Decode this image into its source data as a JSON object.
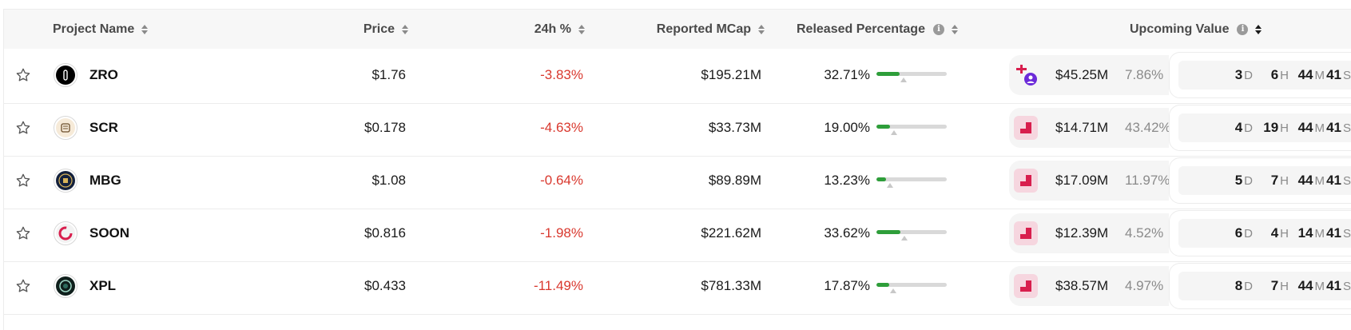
{
  "header": {
    "project_name": "Project Name",
    "price": "Price",
    "change_24h": "24h %",
    "reported_mcap": "Reported MCap",
    "released_percentage": "Released Percentage",
    "upcoming_value": "Upcoming Value",
    "info_glyph": "i"
  },
  "colors": {
    "negative": "#d9382e",
    "progress_fill": "#2e9e3a",
    "progress_track": "#d9d9d9",
    "unlock_icon_bg": "#f6d6df",
    "unlock_icon_fg": "#d81f4e"
  },
  "rows": [
    {
      "symbol": "ZRO",
      "price": "$1.76",
      "change_24h": "-3.83%",
      "reported_mcap": "$195.21M",
      "released_pct": "32.71%",
      "released_fraction": 0.3271,
      "upcoming_icon": "multi-unlock-icon",
      "upcoming_amount": "$45.25M",
      "upcoming_pct": "7.86%",
      "countdown": {
        "d": "3",
        "h": "6",
        "m": "44",
        "s": "41"
      },
      "logo": "zro-logo-icon"
    },
    {
      "symbol": "SCR",
      "price": "$0.178",
      "change_24h": "-4.63%",
      "reported_mcap": "$33.73M",
      "released_pct": "19.00%",
      "released_fraction": 0.19,
      "upcoming_icon": "cliff-unlock-icon",
      "upcoming_amount": "$14.71M",
      "upcoming_pct": "43.42%",
      "countdown": {
        "d": "4",
        "h": "19",
        "m": "44",
        "s": "41"
      },
      "logo": "scr-logo-icon"
    },
    {
      "symbol": "MBG",
      "price": "$1.08",
      "change_24h": "-0.64%",
      "reported_mcap": "$89.89M",
      "released_pct": "13.23%",
      "released_fraction": 0.1323,
      "upcoming_icon": "cliff-unlock-icon",
      "upcoming_amount": "$17.09M",
      "upcoming_pct": "11.97%",
      "countdown": {
        "d": "5",
        "h": "7",
        "m": "44",
        "s": "41"
      },
      "logo": "mbg-logo-icon"
    },
    {
      "symbol": "SOON",
      "price": "$0.816",
      "change_24h": "-1.98%",
      "reported_mcap": "$221.62M",
      "released_pct": "33.62%",
      "released_fraction": 0.3362,
      "upcoming_icon": "cliff-unlock-icon",
      "upcoming_amount": "$12.39M",
      "upcoming_pct": "4.52%",
      "countdown": {
        "d": "6",
        "h": "4",
        "m": "14",
        "s": "41"
      },
      "logo": "soon-logo-icon"
    },
    {
      "symbol": "XPL",
      "price": "$0.433",
      "change_24h": "-11.49%",
      "reported_mcap": "$781.33M",
      "released_pct": "17.87%",
      "released_fraction": 0.1787,
      "upcoming_icon": "cliff-unlock-icon",
      "upcoming_amount": "$38.57M",
      "upcoming_pct": "4.97%",
      "countdown": {
        "d": "8",
        "h": "7",
        "m": "44",
        "s": "41"
      },
      "logo": "xpl-logo-icon"
    }
  ],
  "countdown_units": {
    "d": "D",
    "h": "H",
    "m": "M",
    "s": "S"
  }
}
